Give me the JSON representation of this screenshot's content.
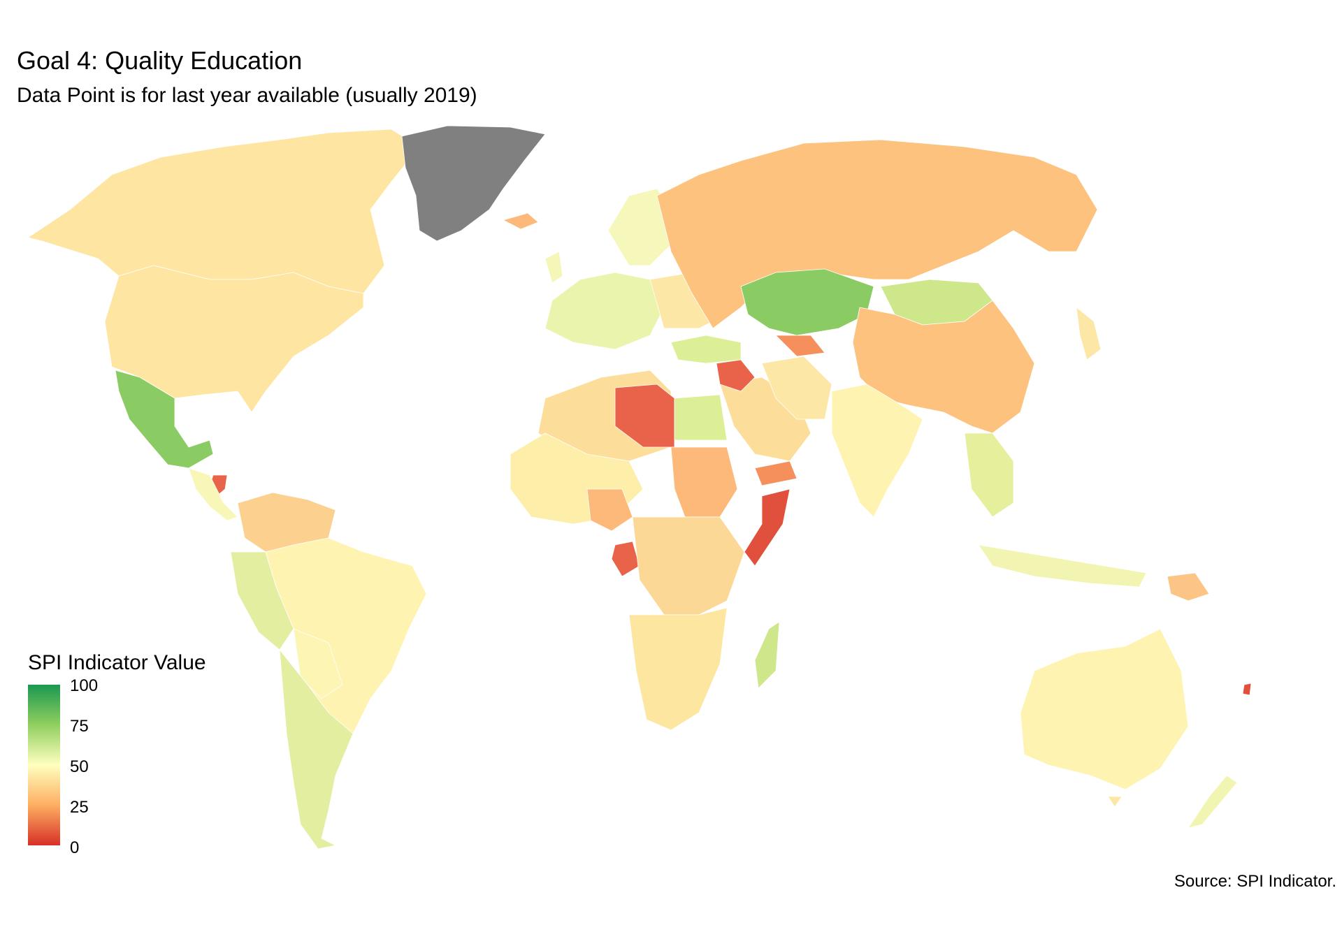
{
  "chart_data": {
    "type": "choropleth",
    "title": "Goal 4: Quality Education",
    "subtitle": "Data Point is for last year available (usually 2019)",
    "legend": {
      "title": "SPI Indicator Value",
      "ticks": [
        "100",
        "75",
        "50",
        "25",
        "0"
      ],
      "scale": [
        "#d73027",
        "#fc8d59",
        "#fee08b",
        "#ffffbf",
        "#d9ef8b",
        "#91cf60",
        "#1a9850"
      ],
      "placement": "bottom-left"
    },
    "caption": "Source: SPI Indicator.",
    "colors": {
      "missing": "#808080",
      "no_data": "#c8c8c8",
      "low": "#e8634a",
      "mid": "#fde9a0",
      "high": "#8bcb64"
    }
  }
}
